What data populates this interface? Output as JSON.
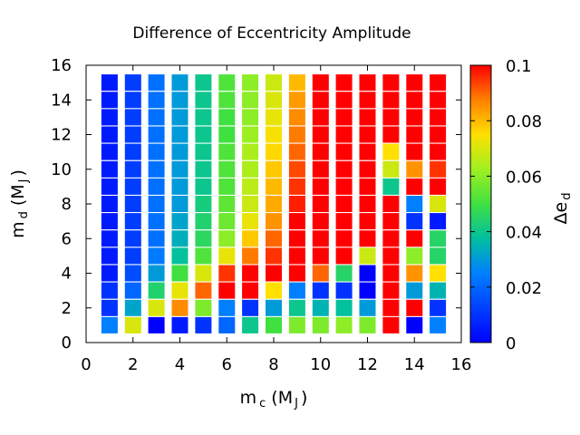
{
  "chart_data": {
    "type": "heatmap",
    "title": "Difference of Eccentricity Amplitude",
    "xlabel": {
      "main": "m",
      "sub": "c",
      "units_open": "(M",
      "units_sub": "J",
      "units_close": ")"
    },
    "ylabel": {
      "main": "m",
      "sub": "d",
      "units_open": "(M",
      "units_sub": "J",
      "units_close": ")"
    },
    "colorbar_label": {
      "main": "Δe",
      "sub": "d"
    },
    "xlim": [
      0,
      16
    ],
    "ylim": [
      0,
      16
    ],
    "x_ticks": [
      "0",
      "2",
      "4",
      "6",
      "8",
      "10",
      "12",
      "14",
      "16"
    ],
    "y_ticks": [
      "0",
      "2",
      "4",
      "6",
      "8",
      "10",
      "12",
      "14",
      "16"
    ],
    "colorbar_range": [
      0,
      0.1
    ],
    "colorbar_ticks": [
      "0",
      "0.02",
      "0.04",
      "0.06",
      "0.08",
      "0.1"
    ],
    "x_values": [
      1,
      2,
      3,
      4,
      5,
      6,
      7,
      8,
      9,
      10,
      11,
      12,
      13,
      14,
      15
    ],
    "y_values": [
      15,
      14,
      13,
      12,
      11,
      10,
      9,
      8,
      7,
      6,
      5,
      4,
      3,
      2,
      1
    ],
    "z": [
      [
        0.005,
        0.012,
        0.022,
        0.03,
        0.04,
        0.052,
        0.06,
        0.068,
        0.08,
        0.1,
        0.1,
        0.1,
        0.1,
        0.1,
        0.1
      ],
      [
        0.005,
        0.012,
        0.022,
        0.03,
        0.04,
        0.052,
        0.06,
        0.07,
        0.084,
        0.1,
        0.1,
        0.1,
        0.1,
        0.1,
        0.1
      ],
      [
        0.005,
        0.012,
        0.022,
        0.03,
        0.04,
        0.05,
        0.06,
        0.072,
        0.086,
        0.1,
        0.1,
        0.1,
        0.1,
        0.1,
        0.1
      ],
      [
        0.005,
        0.012,
        0.022,
        0.03,
        0.04,
        0.05,
        0.062,
        0.074,
        0.088,
        0.1,
        0.1,
        0.1,
        0.1,
        0.1,
        0.1
      ],
      [
        0.005,
        0.012,
        0.022,
        0.03,
        0.04,
        0.052,
        0.064,
        0.076,
        0.09,
        0.1,
        0.1,
        0.1,
        0.075,
        0.1,
        0.1
      ],
      [
        0.005,
        0.012,
        0.022,
        0.03,
        0.04,
        0.052,
        0.064,
        0.078,
        0.093,
        0.1,
        0.1,
        0.1,
        0.068,
        0.085,
        0.095
      ],
      [
        0.005,
        0.012,
        0.022,
        0.03,
        0.04,
        0.052,
        0.066,
        0.08,
        0.095,
        0.1,
        0.1,
        0.1,
        0.04,
        0.1,
        0.1
      ],
      [
        0.005,
        0.012,
        0.022,
        0.03,
        0.042,
        0.054,
        0.068,
        0.082,
        0.097,
        0.1,
        0.1,
        0.1,
        0.1,
        0.025,
        0.07
      ],
      [
        0.005,
        0.012,
        0.022,
        0.032,
        0.044,
        0.056,
        0.072,
        0.085,
        0.1,
        0.1,
        0.1,
        0.1,
        0.1,
        0.01,
        0.005
      ],
      [
        0.005,
        0.012,
        0.022,
        0.034,
        0.046,
        0.06,
        0.078,
        0.09,
        0.1,
        0.1,
        0.1,
        0.1,
        0.1,
        0.1,
        0.045
      ],
      [
        0.005,
        0.012,
        0.024,
        0.038,
        0.052,
        0.072,
        0.088,
        0.095,
        0.1,
        0.1,
        0.1,
        0.068,
        0.1,
        0.06,
        0.045
      ],
      [
        0.005,
        0.015,
        0.03,
        0.05,
        0.07,
        0.095,
        0.1,
        0.1,
        0.1,
        0.09,
        0.045,
        0.0,
        0.1,
        0.085,
        0.075
      ],
      [
        0.01,
        0.02,
        0.044,
        0.072,
        0.09,
        0.1,
        0.1,
        0.075,
        0.025,
        0.01,
        0.01,
        0.0,
        0.1,
        0.03,
        0.035
      ],
      [
        0.01,
        0.032,
        0.07,
        0.086,
        0.058,
        0.025,
        0.01,
        0.03,
        0.04,
        0.035,
        0.038,
        0.03,
        0.1,
        0.1,
        0.01
      ],
      [
        0.025,
        0.07,
        0.0,
        0.005,
        0.01,
        0.02,
        0.04,
        0.05,
        0.058,
        0.058,
        0.06,
        0.058,
        0.1,
        0.0,
        0.025
      ]
    ]
  }
}
